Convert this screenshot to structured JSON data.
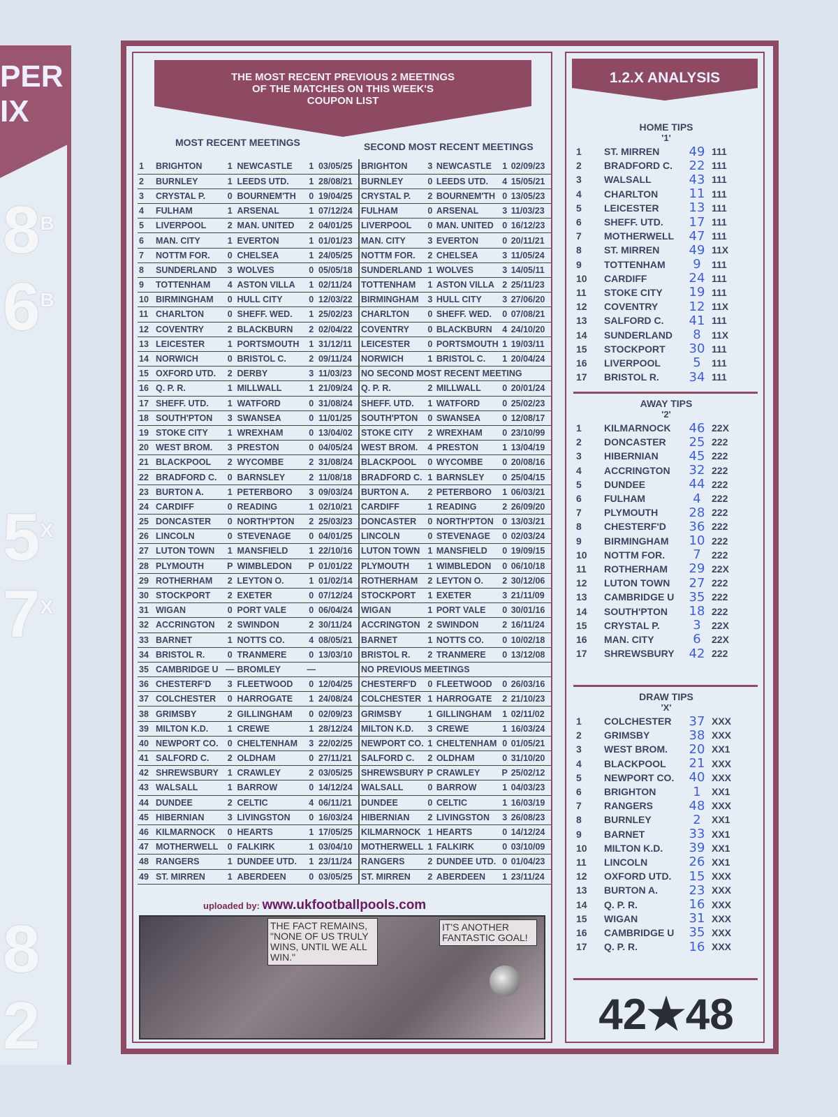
{
  "side_strip": {
    "header": [
      "PER",
      "IX"
    ],
    "numbers": [
      [
        "8",
        "B"
      ],
      [
        "6",
        "B"
      ],
      [
        "5",
        "X"
      ],
      [
        "7",
        "X"
      ],
      [
        "8",
        ""
      ],
      [
        "2",
        ""
      ]
    ]
  },
  "banner": {
    "line1": "THE MOST RECENT PREVIOUS 2 MEETINGS",
    "line2": "OF THE MATCHES ON THIS WEEK'S",
    "line3": "COUPON LIST"
  },
  "headers": {
    "most_recent": "MOST RECENT MEETINGS",
    "second": "SECOND MOST RECENT MEETINGS"
  },
  "rows": [
    [
      "1",
      "BRIGHTON",
      "1",
      "NEWCASTLE",
      "1",
      "03/05/25",
      "BRIGHTON",
      "3",
      "NEWCASTLE",
      "1",
      "02/09/23"
    ],
    [
      "2",
      "BURNLEY",
      "1",
      "LEEDS UTD.",
      "1",
      "28/08/21",
      "BURNLEY",
      "0",
      "LEEDS UTD.",
      "4",
      "15/05/21"
    ],
    [
      "3",
      "CRYSTAL P.",
      "0",
      "BOURNEM'TH",
      "0",
      "19/04/25",
      "CRYSTAL P.",
      "2",
      "BOURNEM'TH",
      "0",
      "13/05/23"
    ],
    [
      "4",
      "FULHAM",
      "1",
      "ARSENAL",
      "1",
      "07/12/24",
      "FULHAM",
      "0",
      "ARSENAL",
      "3",
      "11/03/23"
    ],
    [
      "5",
      "LIVERPOOL",
      "2",
      "MAN. UNITED",
      "2",
      "04/01/25",
      "LIVERPOOL",
      "0",
      "MAN. UNITED",
      "0",
      "16/12/23"
    ],
    [
      "6",
      "MAN. CITY",
      "1",
      "EVERTON",
      "1",
      "01/01/23",
      "MAN. CITY",
      "3",
      "EVERTON",
      "0",
      "20/11/21"
    ],
    [
      "7",
      "NOTTM FOR.",
      "0",
      "CHELSEA",
      "1",
      "24/05/25",
      "NOTTM FOR.",
      "2",
      "CHELSEA",
      "3",
      "11/05/24"
    ],
    [
      "8",
      "SUNDERLAND",
      "3",
      "WOLVES",
      "0",
      "05/05/18",
      "SUNDERLAND",
      "1",
      "WOLVES",
      "3",
      "14/05/11"
    ],
    [
      "9",
      "TOTTENHAM",
      "4",
      "ASTON VILLA",
      "1",
      "02/11/24",
      "TOTTENHAM",
      "1",
      "ASTON VILLA",
      "2",
      "25/11/23"
    ],
    [
      "10",
      "BIRMINGHAM",
      "0",
      "HULL CITY",
      "0",
      "12/03/22",
      "BIRMINGHAM",
      "3",
      "HULL CITY",
      "3",
      "27/06/20"
    ],
    [
      "11",
      "CHARLTON",
      "0",
      "SHEFF. WED.",
      "1",
      "25/02/23",
      "CHARLTON",
      "0",
      "SHEFF. WED.",
      "0",
      "07/08/21"
    ],
    [
      "12",
      "COVENTRY",
      "2",
      "BLACKBURN",
      "2",
      "02/04/22",
      "COVENTRY",
      "0",
      "BLACKBURN",
      "4",
      "24/10/20"
    ],
    [
      "13",
      "LEICESTER",
      "1",
      "PORTSMOUTH",
      "1",
      "31/12/11",
      "LEICESTER",
      "0",
      "PORTSMOUTH",
      "1",
      "19/03/11"
    ],
    [
      "14",
      "NORWICH",
      "0",
      "BRISTOL C.",
      "2",
      "09/11/24",
      "NORWICH",
      "1",
      "BRISTOL C.",
      "1",
      "20/04/24"
    ],
    [
      "15",
      "OXFORD UTD.",
      "2",
      "DERBY",
      "3",
      "11/03/23",
      "NO SECOND MOST RECENT MEETING"
    ],
    [
      "16",
      "Q. P. R.",
      "1",
      "MILLWALL",
      "1",
      "21/09/24",
      "Q. P. R.",
      "2",
      "MILLWALL",
      "0",
      "20/01/24"
    ],
    [
      "17",
      "SHEFF. UTD.",
      "1",
      "WATFORD",
      "0",
      "31/08/24",
      "SHEFF. UTD.",
      "1",
      "WATFORD",
      "0",
      "25/02/23"
    ],
    [
      "18",
      "SOUTH'PTON",
      "3",
      "SWANSEA",
      "0",
      "11/01/25",
      "SOUTH'PTON",
      "0",
      "SWANSEA",
      "0",
      "12/08/17"
    ],
    [
      "19",
      "STOKE CITY",
      "1",
      "WREXHAM",
      "0",
      "13/04/02",
      "STOKE CITY",
      "2",
      "WREXHAM",
      "0",
      "23/10/99"
    ],
    [
      "20",
      "WEST BROM.",
      "3",
      "PRESTON",
      "0",
      "04/05/24",
      "WEST BROM.",
      "4",
      "PRESTON",
      "1",
      "13/04/19"
    ],
    [
      "21",
      "BLACKPOOL",
      "2",
      "WYCOMBE",
      "2",
      "31/08/24",
      "BLACKPOOL",
      "0",
      "WYCOMBE",
      "0",
      "20/08/16"
    ],
    [
      "22",
      "BRADFORD C.",
      "0",
      "BARNSLEY",
      "2",
      "11/08/18",
      "BRADFORD C.",
      "1",
      "BARNSLEY",
      "0",
      "25/04/15"
    ],
    [
      "23",
      "BURTON A.",
      "1",
      "PETERBORO",
      "3",
      "09/03/24",
      "BURTON A.",
      "2",
      "PETERBORO",
      "1",
      "06/03/21"
    ],
    [
      "24",
      "CARDIFF",
      "0",
      "READING",
      "1",
      "02/10/21",
      "CARDIFF",
      "1",
      "READING",
      "2",
      "26/09/20"
    ],
    [
      "25",
      "DONCASTER",
      "0",
      "NORTH'PTON",
      "2",
      "25/03/23",
      "DONCASTER",
      "0",
      "NORTH'PTON",
      "0",
      "13/03/21"
    ],
    [
      "26",
      "LINCOLN",
      "0",
      "STEVENAGE",
      "0",
      "04/01/25",
      "LINCOLN",
      "0",
      "STEVENAGE",
      "0",
      "02/03/24"
    ],
    [
      "27",
      "LUTON TOWN",
      "1",
      "MANSFIELD",
      "1",
      "22/10/16",
      "LUTON TOWN",
      "1",
      "MANSFIELD",
      "0",
      "19/09/15"
    ],
    [
      "28",
      "PLYMOUTH",
      "P",
      "WIMBLEDON",
      "P",
      "01/01/22",
      "PLYMOUTH",
      "1",
      "WIMBLEDON",
      "0",
      "06/10/18"
    ],
    [
      "29",
      "ROTHERHAM",
      "2",
      "LEYTON O.",
      "1",
      "01/02/14",
      "ROTHERHAM",
      "2",
      "LEYTON O.",
      "2",
      "30/12/06"
    ],
    [
      "30",
      "STOCKPORT",
      "2",
      "EXETER",
      "0",
      "07/12/24",
      "STOCKPORT",
      "1",
      "EXETER",
      "3",
      "21/11/09"
    ],
    [
      "31",
      "WIGAN",
      "0",
      "PORT VALE",
      "0",
      "06/04/24",
      "WIGAN",
      "1",
      "PORT VALE",
      "0",
      "30/01/16"
    ],
    [
      "32",
      "ACCRINGTON",
      "2",
      "SWINDON",
      "2",
      "30/11/24",
      "ACCRINGTON",
      "2",
      "SWINDON",
      "2",
      "16/11/24"
    ],
    [
      "33",
      "BARNET",
      "1",
      "NOTTS CO.",
      "4",
      "08/05/21",
      "BARNET",
      "1",
      "NOTTS CO.",
      "0",
      "10/02/18"
    ],
    [
      "34",
      "BRISTOL R.",
      "0",
      "TRANMERE",
      "0",
      "13/03/10",
      "BRISTOL R.",
      "2",
      "TRANMERE",
      "0",
      "13/12/08"
    ],
    [
      "35",
      "CAMBRIDGE U",
      "—",
      "BROMLEY",
      "—",
      "",
      "NO PREVIOUS MEETINGS"
    ],
    [
      "36",
      "CHESTERF'D",
      "3",
      "FLEETWOOD",
      "0",
      "12/04/25",
      "CHESTERF'D",
      "0",
      "FLEETWOOD",
      "0",
      "26/03/16"
    ],
    [
      "37",
      "COLCHESTER",
      "0",
      "HARROGATE",
      "1",
      "24/08/24",
      "COLCHESTER",
      "1",
      "HARROGATE",
      "2",
      "21/10/23"
    ],
    [
      "38",
      "GRIMSBY",
      "2",
      "GILLINGHAM",
      "0",
      "02/09/23",
      "GRIMSBY",
      "1",
      "GILLINGHAM",
      "1",
      "02/11/02"
    ],
    [
      "39",
      "MILTON K.D.",
      "1",
      "CREWE",
      "1",
      "28/12/24",
      "MILTON K.D.",
      "3",
      "CREWE",
      "1",
      "16/03/24"
    ],
    [
      "40",
      "NEWPORT CO.",
      "0",
      "CHELTENHAM",
      "3",
      "22/02/25",
      "NEWPORT CO.",
      "1",
      "CHELTENHAM",
      "0",
      "01/05/21"
    ],
    [
      "41",
      "SALFORD C.",
      "2",
      "OLDHAM",
      "0",
      "27/11/21",
      "SALFORD C.",
      "2",
      "OLDHAM",
      "0",
      "31/10/20"
    ],
    [
      "42",
      "SHREWSBURY",
      "1",
      "CRAWLEY",
      "2",
      "03/05/25",
      "SHREWSBURY",
      "P",
      "CRAWLEY",
      "P",
      "25/02/12"
    ],
    [
      "43",
      "WALSALL",
      "1",
      "BARROW",
      "0",
      "14/12/24",
      "WALSALL",
      "0",
      "BARROW",
      "1",
      "04/03/23"
    ],
    [
      "44",
      "DUNDEE",
      "2",
      "CELTIC",
      "4",
      "06/11/21",
      "DUNDEE",
      "0",
      "CELTIC",
      "1",
      "16/03/19"
    ],
    [
      "45",
      "HIBERNIAN",
      "3",
      "LIVINGSTON",
      "0",
      "16/03/24",
      "HIBERNIAN",
      "2",
      "LIVINGSTON",
      "3",
      "26/08/23"
    ],
    [
      "46",
      "KILMARNOCK",
      "0",
      "HEARTS",
      "1",
      "17/05/25",
      "KILMARNOCK",
      "1",
      "HEARTS",
      "0",
      "14/12/24"
    ],
    [
      "47",
      "MOTHERWELL",
      "0",
      "FALKIRK",
      "1",
      "03/04/10",
      "MOTHERWELL",
      "1",
      "FALKIRK",
      "0",
      "03/10/09"
    ],
    [
      "48",
      "RANGERS",
      "1",
      "DUNDEE UTD.",
      "1",
      "23/11/24",
      "RANGERS",
      "2",
      "DUNDEE UTD.",
      "0",
      "01/04/23"
    ],
    [
      "49",
      "ST. MIRREN",
      "1",
      "ABERDEEN",
      "0",
      "03/05/25",
      "ST. MIRREN",
      "2",
      "ABERDEEN",
      "1",
      "23/11/24"
    ]
  ],
  "uploaded": {
    "label": "uploaded by:",
    "url": "www.ukfootballpools.com"
  },
  "cartoon": {
    "bubble1": "THE FACT REMAINS, \"NONE OF US TRULY WINS, UNTIL WE ALL WIN.\"",
    "bubble2": "IT'S ANOTHER FANTASTIC GOAL!"
  },
  "analysis": {
    "title": "1.2.X ANALYSIS",
    "sections": [
      {
        "title": "HOME TIPS",
        "symbol": "'1'",
        "tips": [
          [
            "1",
            "ST. MIRREN",
            "49",
            "111"
          ],
          [
            "2",
            "BRADFORD C.",
            "22",
            "111"
          ],
          [
            "3",
            "WALSALL",
            "43",
            "111"
          ],
          [
            "4",
            "CHARLTON",
            "11",
            "111"
          ],
          [
            "5",
            "LEICESTER",
            "13",
            "111"
          ],
          [
            "6",
            "SHEFF. UTD.",
            "17",
            "111"
          ],
          [
            "7",
            "MOTHERWELL",
            "47",
            "111"
          ],
          [
            "8",
            "ST. MIRREN",
            "49",
            "11X"
          ],
          [
            "9",
            "TOTTENHAM",
            "9",
            "111"
          ],
          [
            "10",
            "CARDIFF",
            "24",
            "111"
          ],
          [
            "11",
            "STOKE CITY",
            "19",
            "111"
          ],
          [
            "12",
            "COVENTRY",
            "12",
            "11X"
          ],
          [
            "13",
            "SALFORD C.",
            "41",
            "111"
          ],
          [
            "14",
            "SUNDERLAND",
            "8",
            "11X"
          ],
          [
            "15",
            "STOCKPORT",
            "30",
            "111"
          ],
          [
            "16",
            "LIVERPOOL",
            "5",
            "111"
          ],
          [
            "17",
            "BRISTOL R.",
            "34",
            "111"
          ]
        ]
      },
      {
        "title": "AWAY TIPS",
        "symbol": "'2'",
        "tips": [
          [
            "1",
            "KILMARNOCK",
            "46",
            "22X"
          ],
          [
            "2",
            "DONCASTER",
            "25",
            "222"
          ],
          [
            "3",
            "HIBERNIAN",
            "45",
            "222"
          ],
          [
            "4",
            "ACCRINGTON",
            "32",
            "222"
          ],
          [
            "5",
            "DUNDEE",
            "44",
            "222"
          ],
          [
            "6",
            "FULHAM",
            "4",
            "222"
          ],
          [
            "7",
            "PLYMOUTH",
            "28",
            "222"
          ],
          [
            "8",
            "CHESTERF'D",
            "36",
            "222"
          ],
          [
            "9",
            "BIRMINGHAM",
            "10",
            "222"
          ],
          [
            "10",
            "NOTTM FOR.",
            "7",
            "222"
          ],
          [
            "11",
            "ROTHERHAM",
            "29",
            "22X"
          ],
          [
            "12",
            "LUTON TOWN",
            "27",
            "222"
          ],
          [
            "13",
            "CAMBRIDGE U",
            "35",
            "222"
          ],
          [
            "14",
            "SOUTH'PTON",
            "18",
            "222"
          ],
          [
            "15",
            "CRYSTAL P.",
            "3",
            "22X"
          ],
          [
            "16",
            "MAN. CITY",
            "6",
            "22X"
          ],
          [
            "17",
            "SHREWSBURY",
            "42",
            "222"
          ]
        ]
      },
      {
        "title": "DRAW TIPS",
        "symbol": "'X'",
        "tips": [
          [
            "1",
            "COLCHESTER",
            "37",
            "XXX"
          ],
          [
            "2",
            "GRIMSBY",
            "38",
            "XXX"
          ],
          [
            "3",
            "WEST BROM.",
            "20",
            "XX1"
          ],
          [
            "4",
            "BLACKPOOL",
            "21",
            "XXX"
          ],
          [
            "5",
            "NEWPORT CO.",
            "40",
            "XXX"
          ],
          [
            "6",
            "BRIGHTON",
            "1",
            "XX1"
          ],
          [
            "7",
            "RANGERS",
            "48",
            "XXX"
          ],
          [
            "8",
            "BURNLEY",
            "2",
            "XX1"
          ],
          [
            "9",
            "BARNET",
            "33",
            "XX1"
          ],
          [
            "10",
            "MILTON K.D.",
            "39",
            "XX1"
          ],
          [
            "11",
            "LINCOLN",
            "26",
            "XX1"
          ],
          [
            "12",
            "OXFORD UTD.",
            "15",
            "XXX"
          ],
          [
            "13",
            "BURTON A.",
            "23",
            "XXX"
          ],
          [
            "14",
            "Q. P. R.",
            "16",
            "XXX"
          ],
          [
            "15",
            "WIGAN",
            "31",
            "XXX"
          ],
          [
            "16",
            "CAMBRIDGE U",
            "35",
            "XXX"
          ],
          [
            "17",
            "Q. P. R.",
            "16",
            "XXX"
          ]
        ]
      }
    ],
    "score": {
      "left": "42",
      "star": "★",
      "right": "48"
    }
  },
  "colors": {
    "maroon": "#8e4a63",
    "handwriting": "#3d5fcf",
    "paper": "#dbe4ef"
  }
}
